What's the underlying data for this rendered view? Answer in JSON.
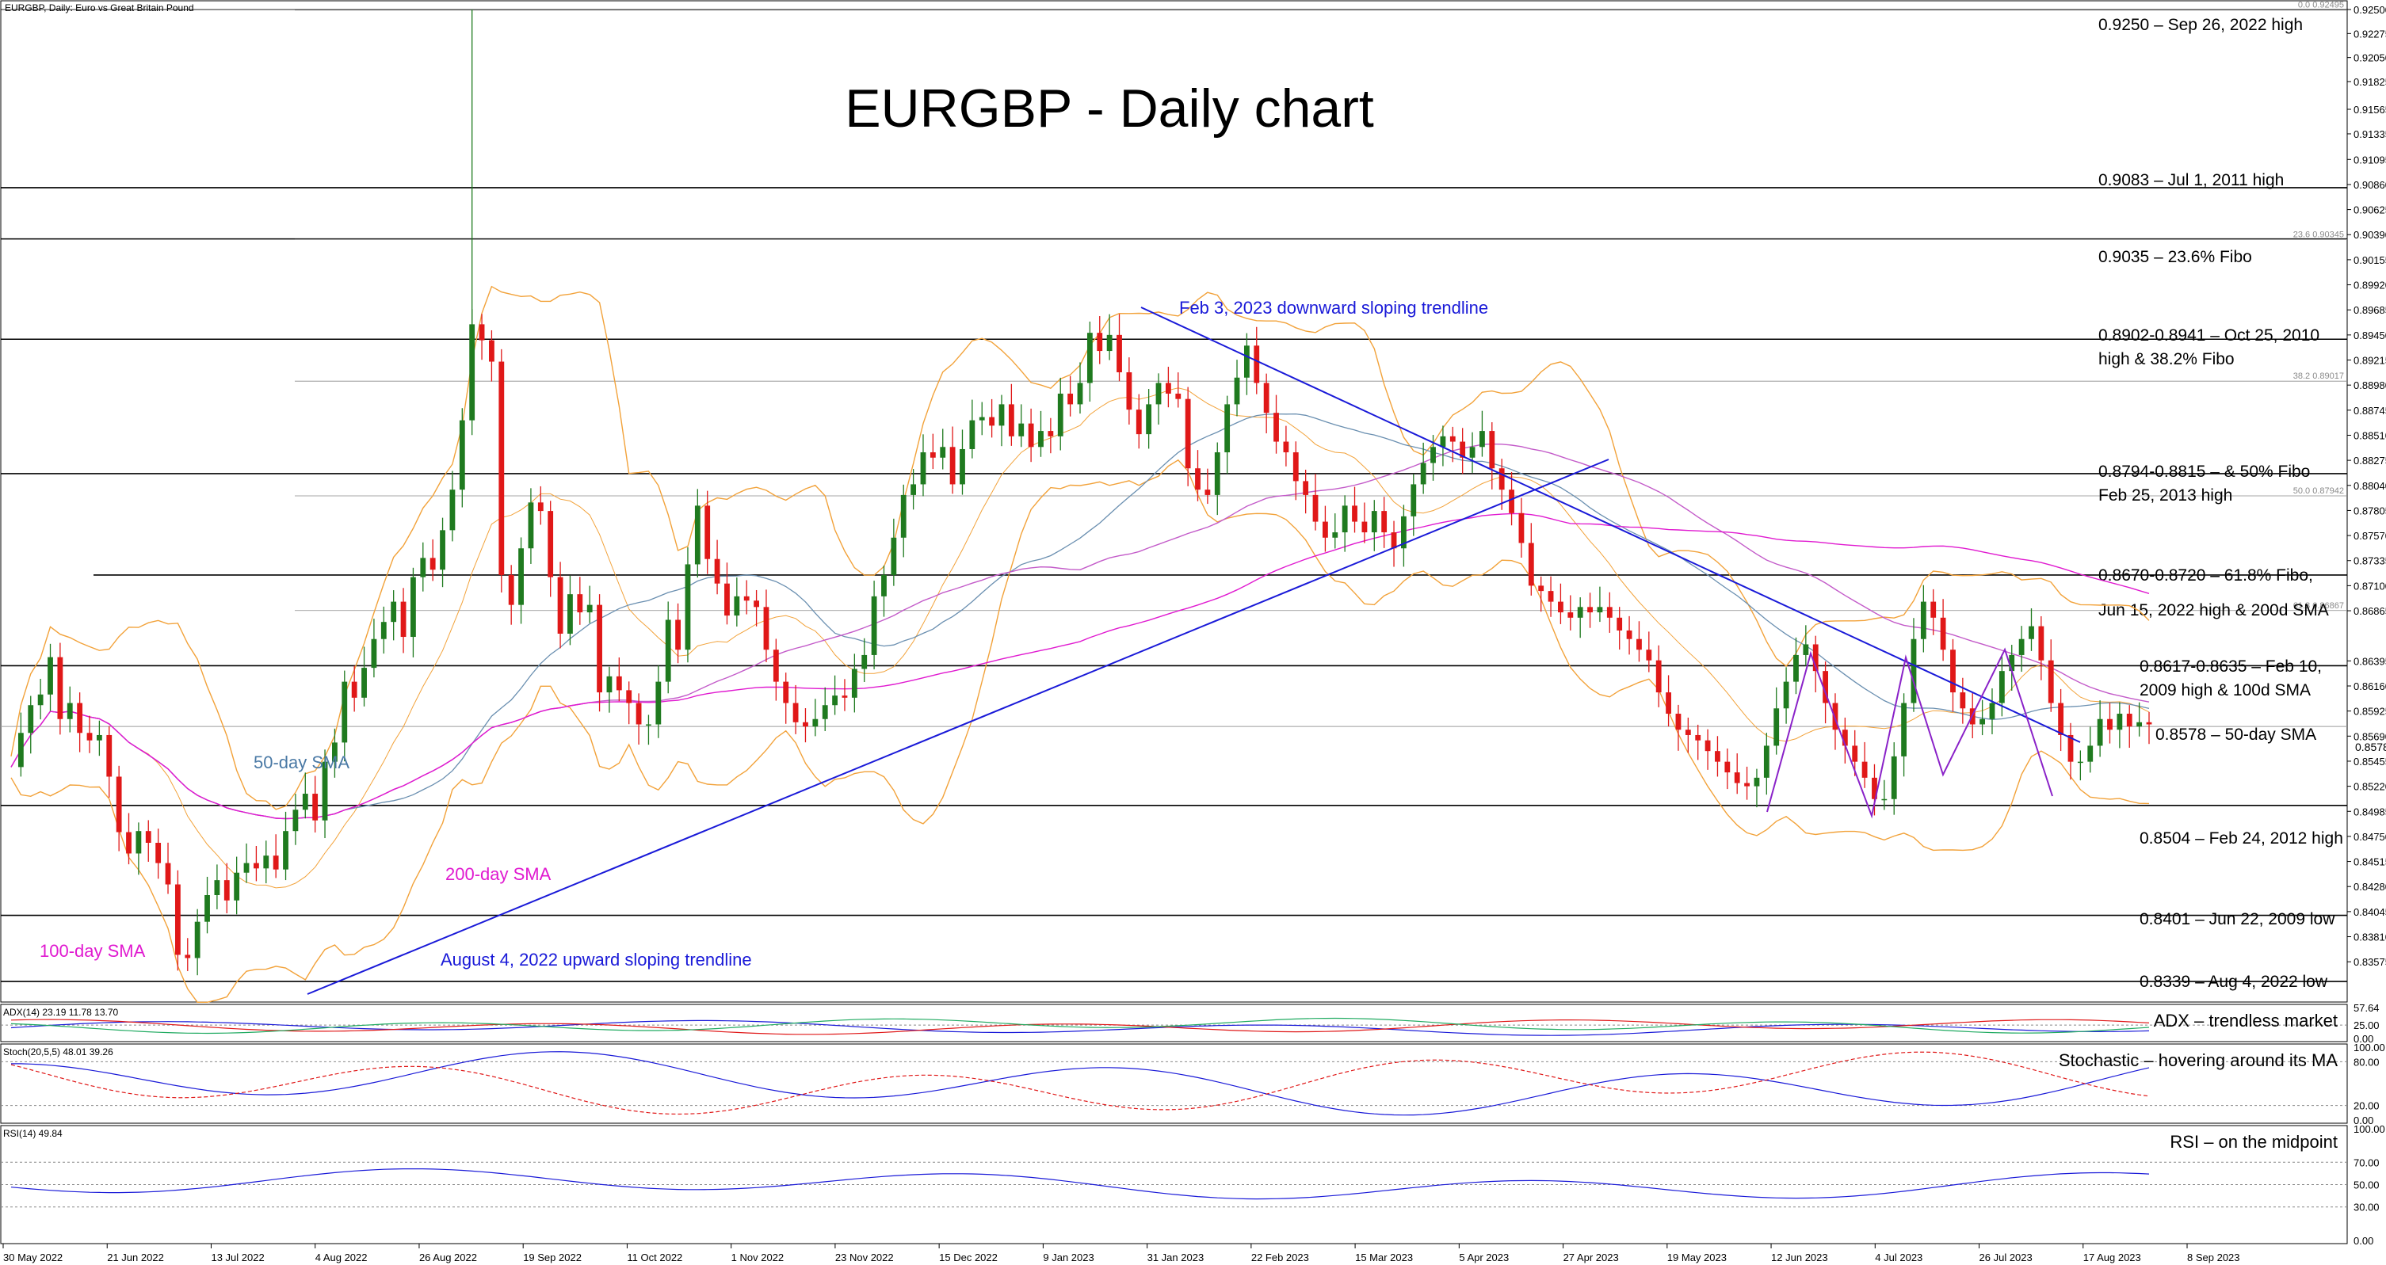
{
  "chart_data": {
    "type": "line",
    "symbol_label": "EURGBP, Daily:  Euro vs Great Britain Pound",
    "title": "EURGBP - Daily chart",
    "ylim": [
      0.8339,
      0.925
    ],
    "x_ticks": [
      "30 May 2022",
      "21 Jun 2022",
      "13 Jul 2022",
      "4 Aug 2022",
      "26 Aug 2022",
      "19 Sep 2022",
      "11 Oct 2022",
      "1 Nov 2022",
      "23 Nov 2022",
      "15 Dec 2022",
      "9 Jan 2023",
      "31 Jan 2023",
      "22 Feb 2023",
      "15 Mar 2023",
      "5 Apr 2023",
      "27 Apr 2023",
      "19 May 2023",
      "12 Jun 2023",
      "4 Jul 2023",
      "26 Jul 2023",
      "17 Aug 2023",
      "8 Sep 2023"
    ],
    "price_ticks": [
      "0.92500",
      "0.92275",
      "0.92050",
      "0.91825",
      "0.91565",
      "0.91335",
      "0.91095",
      "0.90860",
      "0.90625",
      "0.90390",
      "0.90155",
      "0.89920",
      "0.89685",
      "0.89450",
      "0.89215",
      "0.88980",
      "0.88745",
      "0.88510",
      "0.88275",
      "0.88040",
      "0.87805",
      "0.87570",
      "0.87335",
      "0.87100",
      "0.86865",
      "0.86395",
      "0.86160",
      "0.85925",
      "0.85690",
      "0.85455",
      "0.85220",
      "0.84985",
      "0.84750",
      "0.84515",
      "0.84280",
      "0.84045",
      "0.83810",
      "0.83575"
    ],
    "current_price": "0.8578",
    "levels": [
      {
        "price": 0.925,
        "label": "0.9250 – Sep 26, 2022 high"
      },
      {
        "price": 0.9083,
        "label": "0.9083 – Jul 1, 2011 high"
      },
      {
        "price": 0.9035,
        "label": "0.9035 – 23.6% Fibo"
      },
      {
        "price": 0.8941,
        "label": "0.8902-0.8941 – Oct 25, 2010",
        "label2": "high & 38.2% Fibo"
      },
      {
        "price": 0.8815,
        "label": "0.8794-0.8815 – & 50% Fibo",
        "label2": "Feb 25, 2013 high"
      },
      {
        "price": 0.872,
        "label": "0.8670-0.8720 – 61.8% Fibo,",
        "label2": "Jun 15, 2022 high & 200d SMA"
      },
      {
        "price": 0.8635,
        "label": "0.8617-0.8635 – Feb 10,",
        "label2": "2009 high & 100d SMA"
      },
      {
        "price": 0.8578,
        "label": "0.8578 – 50-day SMA"
      },
      {
        "price": 0.8504,
        "label": "0.8504 – Feb 24, 2012 high"
      },
      {
        "price": 0.8401,
        "label": "0.8401 – Jun 22, 2009 low"
      },
      {
        "price": 0.8339,
        "label": "0.8339 – Aug 4, 2022 low"
      }
    ],
    "fibo_labels": [
      "0.0 0.92495",
      "23.6 0.90345",
      "38.2 0.89017",
      "50.0 0.87942",
      "61.8 0.86867"
    ],
    "annotations": {
      "sma50": "50-day SMA",
      "sma100": "100-day SMA",
      "sma200": "200-day SMA",
      "uptrend": "August 4, 2022 upward sloping trendline",
      "downtrend": "Feb 3, 2023 downward sloping trendline"
    },
    "series": [
      {
        "name": "EURGBP",
        "values": [
          0.854,
          0.8572,
          0.8598,
          0.8608,
          0.8643,
          0.8585,
          0.86,
          0.8572,
          0.8565,
          0.857,
          0.8531,
          0.8479,
          0.8459,
          0.848,
          0.8469,
          0.845,
          0.843,
          0.8364,
          0.8361,
          0.8395,
          0.842,
          0.8434,
          0.8415,
          0.8441,
          0.845,
          0.8445,
          0.8457,
          0.8444,
          0.848,
          0.85,
          0.8515,
          0.849,
          0.8545,
          0.8563,
          0.862,
          0.8605,
          0.8633,
          0.866,
          0.8676,
          0.8695,
          0.8662,
          0.8718,
          0.8736,
          0.8725,
          0.8762,
          0.88,
          0.8865,
          0.8955,
          0.894,
          0.892,
          0.872,
          0.8692,
          0.8745,
          0.8788,
          0.878,
          0.8718,
          0.8665,
          0.8702,
          0.8685,
          0.8692,
          0.861,
          0.8625,
          0.8612,
          0.86,
          0.858,
          0.858,
          0.862,
          0.8678,
          0.865,
          0.873,
          0.8785,
          0.8735,
          0.8712,
          0.8682,
          0.87,
          0.8696,
          0.869,
          0.865,
          0.862,
          0.86,
          0.8582,
          0.8578,
          0.8585,
          0.8598,
          0.8607,
          0.8605,
          0.8632,
          0.8645,
          0.87,
          0.872,
          0.8755,
          0.8795,
          0.8805,
          0.8835,
          0.883,
          0.884,
          0.8805,
          0.8838,
          0.8865,
          0.8868,
          0.886,
          0.888,
          0.885,
          0.8862,
          0.884,
          0.8855,
          0.885,
          0.889,
          0.888,
          0.89,
          0.8947,
          0.893,
          0.8945,
          0.891,
          0.8875,
          0.8852,
          0.888,
          0.89,
          0.889,
          0.8885,
          0.882,
          0.88,
          0.8795,
          0.8835,
          0.888,
          0.8905,
          0.8935,
          0.89,
          0.8872,
          0.8845,
          0.8835,
          0.8808,
          0.8795,
          0.877,
          0.8755,
          0.876,
          0.8785,
          0.877,
          0.876,
          0.878,
          0.876,
          0.8745,
          0.8775,
          0.8805,
          0.8825,
          0.884,
          0.885,
          0.8845,
          0.883,
          0.884,
          0.8855,
          0.882,
          0.88,
          0.8778,
          0.875,
          0.871,
          0.8705,
          0.8695,
          0.8685,
          0.868,
          0.869,
          0.8685,
          0.869,
          0.868,
          0.8668,
          0.866,
          0.865,
          0.864,
          0.861,
          0.859,
          0.8575,
          0.857,
          0.8565,
          0.8555,
          0.8545,
          0.8535,
          0.8525,
          0.8522,
          0.853,
          0.856,
          0.8595,
          0.862,
          0.8645,
          0.8655,
          0.863,
          0.86,
          0.8575,
          0.856,
          0.8545,
          0.853,
          0.851,
          0.851,
          0.855,
          0.86,
          0.866,
          0.8695,
          0.868,
          0.865,
          0.861,
          0.8595,
          0.858,
          0.8585,
          0.86,
          0.863,
          0.8645,
          0.866,
          0.8672,
          0.864,
          0.86,
          0.857,
          0.8545,
          0.8545,
          0.856,
          0.8585,
          0.8575,
          0.859,
          0.8578,
          0.8582,
          0.858
        ]
      }
    ],
    "indicators": [
      {
        "name": "ADX",
        "label": "ADX(14) 23.19 11.78 13.70",
        "annotation": "ADX – trendless market",
        "axis": [
          "57.64",
          "25.00",
          "0.00"
        ]
      },
      {
        "name": "Stochastic",
        "label": "Stoch(20,5,5) 48.01 39.26",
        "annotation": "Stochastic – hovering around its MA",
        "axis": [
          "100.00",
          "80.00",
          "20.00",
          "0.00"
        ]
      },
      {
        "name": "RSI",
        "label": "RSI(14) 49.84",
        "annotation": "RSI – on the midpoint",
        "axis": [
          "100.00",
          "70.00",
          "50.00",
          "30.00",
          "0.00"
        ]
      }
    ]
  }
}
